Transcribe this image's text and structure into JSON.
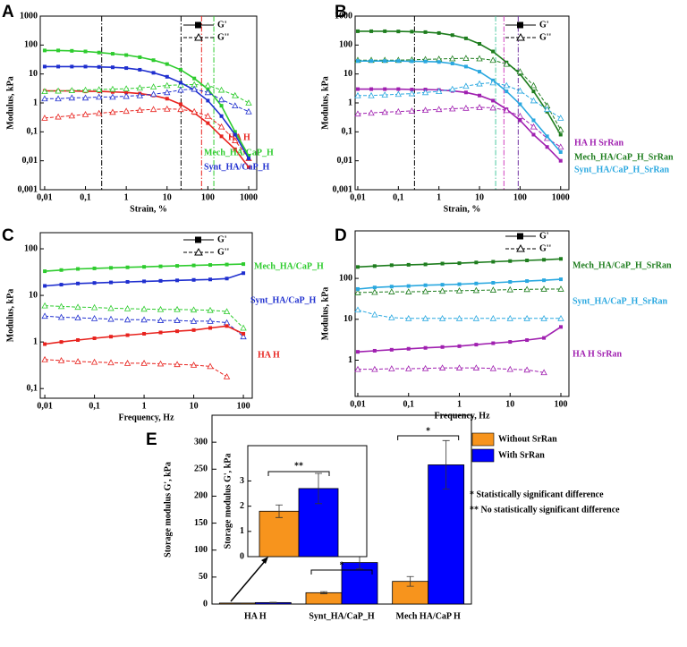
{
  "chart_data": [
    {
      "type": "line",
      "panel": "A",
      "xlabel": "Strain, %",
      "ylabel": "Modulus, kPa",
      "log_x": true,
      "log_y": true,
      "xlim": [
        0.0078,
        1575
      ],
      "ylim": [
        0.001,
        1000
      ],
      "xticks": [
        {
          "value": 0.01,
          "label": "0,01"
        },
        {
          "value": 0.1,
          "label": "0,1"
        },
        1,
        10,
        100,
        1000
      ],
      "yticks": [
        {
          "value": 0.001,
          "label": "0,001"
        },
        {
          "value": 0.01,
          "label": "0,01"
        },
        {
          "value": 0.1,
          "label": "0,1"
        },
        1,
        10,
        100,
        1000
      ],
      "legend": [
        "G'",
        "G''"
      ],
      "x": [
        0.01,
        0.0215,
        0.0464,
        0.1,
        0.215,
        0.464,
        1,
        2.15,
        4.64,
        10,
        21.5,
        46.4,
        100,
        215,
        464,
        1000
      ],
      "series": [
        {
          "name": "HA H",
          "color": "#e8231e",
          "values": [
            2.6,
            2.6,
            2.6,
            2.5,
            2.5,
            2.4,
            2.3,
            2.1,
            1.8,
            1.4,
            0.9,
            0.45,
            0.2,
            0.07,
            0.025,
            0.006
          ],
          "loss_values": [
            0.3,
            0.33,
            0.36,
            0.4,
            0.44,
            0.48,
            0.52,
            0.56,
            0.6,
            0.62,
            0.6,
            0.5,
            0.35,
            0.15,
            0.05,
            0.012
          ]
        },
        {
          "name": "Mech_HA/CaP_H",
          "color": "#2ecc2e",
          "values": [
            65,
            65,
            63,
            60,
            55,
            50,
            45,
            38,
            30,
            22,
            14,
            7,
            3,
            0.8,
            0.1,
            0.015
          ],
          "loss_values": [
            2.5,
            2.6,
            2.7,
            2.8,
            2.9,
            3,
            3.1,
            3.3,
            3.6,
            4,
            4.2,
            4.3,
            4,
            2.8,
            1.8,
            1
          ]
        },
        {
          "name": "Synt_HA/CaP_H",
          "color": "#1f2fcf",
          "values": [
            18,
            18,
            18,
            18,
            17.5,
            17,
            16,
            14,
            11,
            8,
            5,
            2.8,
            1.2,
            0.35,
            0.08,
            0.012
          ],
          "loss_values": [
            1.4,
            1.4,
            1.5,
            1.5,
            1.6,
            1.6,
            1.7,
            1.8,
            2,
            2.3,
            2.8,
            3,
            2.3,
            1.3,
            0.8,
            0.5
          ]
        }
      ],
      "vlines": [
        {
          "x": 0.25,
          "color": "#000000"
        },
        {
          "x": 22,
          "color": "#000000"
        },
        {
          "x": 70,
          "color": "#e8231e"
        },
        {
          "x": 140,
          "color": "#2ecc2e"
        }
      ]
    },
    {
      "type": "line",
      "panel": "B",
      "xlabel": "Strain, %",
      "ylabel": "Modulus, kPa",
      "log_x": true,
      "log_y": true,
      "xlim": [
        0.0086,
        1600
      ],
      "ylim": [
        0.001,
        1000
      ],
      "xticks": [
        {
          "value": 0.01,
          "label": "0,01"
        },
        {
          "value": 0.1,
          "label": "0,1"
        },
        1,
        10,
        100,
        1000
      ],
      "yticks": [
        {
          "value": 0.001,
          "label": "0,001"
        },
        {
          "value": 0.01,
          "label": "0,01"
        },
        {
          "value": 0.1,
          "label": "0,1"
        },
        1,
        10,
        100,
        1000
      ],
      "legend": [
        "G'",
        "G''"
      ],
      "x": [
        0.01,
        0.0215,
        0.0464,
        0.1,
        0.215,
        0.464,
        1,
        2.15,
        4.64,
        10,
        21.5,
        46.4,
        100,
        215,
        464,
        1000
      ],
      "series": [
        {
          "name": "HA H  SrRan",
          "color": "#a020b0",
          "values": [
            3,
            3,
            3,
            3,
            2.9,
            2.9,
            2.8,
            2.6,
            2.3,
            1.8,
            1.2,
            0.6,
            0.25,
            0.08,
            0.03,
            0.01
          ],
          "loss_values": [
            0.42,
            0.45,
            0.48,
            0.5,
            0.53,
            0.56,
            0.6,
            0.63,
            0.66,
            0.7,
            0.68,
            0.55,
            0.35,
            0.15,
            0.06,
            0.03
          ]
        },
        {
          "name": "Mech_HA/CaP_H_SrRan",
          "color": "#1e7d1e",
          "values": [
            300,
            300,
            300,
            295,
            290,
            280,
            260,
            220,
            170,
            110,
            60,
            25,
            10,
            2.5,
            0.5,
            0.08
          ],
          "loss_values": [
            30,
            30,
            30,
            30,
            31,
            32,
            33,
            34,
            35,
            34,
            30,
            22,
            12,
            4,
            0.8,
            0.12
          ]
        },
        {
          "name": "Synt_HA/CaP_H_SrRan",
          "color": "#2aa8e0",
          "values": [
            28,
            28,
            28,
            28,
            27.5,
            27,
            26,
            23,
            18,
            12,
            6,
            2.5,
            0.9,
            0.25,
            0.07,
            0.02
          ],
          "loss_values": [
            1.8,
            1.8,
            1.9,
            2,
            2.1,
            2.3,
            2.5,
            3,
            3.8,
            4.6,
            5,
            4,
            2.6,
            1.2,
            0.6,
            0.3
          ]
        }
      ],
      "vlines": [
        {
          "x": 0.25,
          "color": "#000000"
        },
        {
          "x": 25,
          "color": "#4cc9a0"
        },
        {
          "x": 40,
          "color": "#d040c0"
        },
        {
          "x": 90,
          "color": "#7030a0"
        }
      ]
    },
    {
      "type": "line",
      "panel": "C",
      "xlabel": "Frequency, Hz",
      "ylabel": "Modulus, kPa",
      "log_x": true,
      "log_y": true,
      "xlim": [
        0.0081,
        151
      ],
      "ylim": [
        0.062,
        222
      ],
      "xticks": [
        {
          "value": 0.01,
          "label": "0,01"
        },
        {
          "value": 0.1,
          "label": "0,1"
        },
        1,
        10,
        100
      ],
      "yticks": [
        {
          "value": 0.1,
          "label": "0,1"
        },
        1,
        10,
        100
      ],
      "legend": [
        "G'",
        "G''"
      ],
      "x": [
        0.01,
        0.0215,
        0.0464,
        0.1,
        0.215,
        0.464,
        1,
        2.15,
        4.64,
        10,
        21.5,
        46.4,
        100
      ],
      "series": [
        {
          "name": "Mech_HA/CaP_H",
          "color": "#2ecc2e",
          "values": [
            33,
            35,
            37,
            38,
            39,
            40,
            41,
            42,
            43,
            44,
            45,
            46,
            47
          ],
          "loss_values": [
            6,
            5.8,
            5.6,
            5.5,
            5.3,
            5.2,
            5.1,
            5,
            5,
            4.9,
            4.8,
            4.5,
            2
          ]
        },
        {
          "name": "Synt_HA/CaP_H",
          "color": "#1f2fcf",
          "values": [
            16,
            17,
            18,
            18.5,
            19,
            19.5,
            20,
            20.5,
            21,
            21.5,
            22,
            23,
            30
          ],
          "loss_values": [
            3.6,
            3.4,
            3.3,
            3.2,
            3.1,
            3,
            3,
            2.9,
            2.9,
            2.8,
            2.8,
            2.6,
            1.3
          ]
        },
        {
          "name": "HA H",
          "color": "#e8231e",
          "values": [
            0.9,
            1,
            1.1,
            1.2,
            1.3,
            1.4,
            1.5,
            1.6,
            1.7,
            1.8,
            2,
            2.2,
            1.5
          ],
          "loss_values": [
            0.42,
            0.4,
            0.38,
            0.37,
            0.36,
            0.35,
            0.35,
            0.34,
            0.33,
            0.32,
            0.3,
            0.18,
            null
          ]
        }
      ],
      "vlines": []
    },
    {
      "type": "line",
      "panel": "D",
      "xlabel": "Frequency, Hz",
      "ylabel": "Modulus, kPa",
      "log_x": true,
      "log_y": true,
      "xlim": [
        0.00886,
        144
      ],
      "ylim": [
        0.13,
        1450
      ],
      "xticks": [
        {
          "value": 0.01,
          "label": "0,01"
        },
        {
          "value": 0.1,
          "label": "0,1"
        },
        1,
        10,
        100
      ],
      "yticks": [
        1,
        10,
        100
      ],
      "legend": [
        "G'",
        "G''"
      ],
      "x": [
        0.01,
        0.0215,
        0.0464,
        0.1,
        0.215,
        0.464,
        1,
        2.15,
        4.64,
        10,
        21.5,
        46.4,
        100
      ],
      "series": [
        {
          "name": "Mech_HA/CaP_H_SrRan",
          "color": "#1e7d1e",
          "values": [
            190,
            200,
            210,
            215,
            220,
            230,
            235,
            245,
            255,
            265,
            275,
            285,
            300
          ],
          "loss_values": [
            45,
            46,
            47,
            47,
            48,
            49,
            50,
            51,
            52,
            53,
            54,
            55,
            55
          ]
        },
        {
          "name": "Synt_HA/CaP_H_SrRan",
          "color": "#2aa8e0",
          "values": [
            55,
            60,
            63,
            65,
            68,
            70,
            72,
            75,
            78,
            82,
            86,
            90,
            95
          ],
          "loss_values": [
            17,
            13,
            11,
            10.5,
            10.5,
            10.5,
            10.5,
            10.5,
            10.5,
            10.5,
            10.5,
            10.5,
            10.5
          ]
        },
        {
          "name": "HA H  SrRan",
          "color": "#a020b0",
          "values": [
            1.6,
            1.7,
            1.8,
            1.9,
            2,
            2.1,
            2.2,
            2.4,
            2.6,
            2.8,
            3.1,
            3.5,
            6.5
          ],
          "loss_values": [
            0.6,
            0.6,
            0.62,
            0.62,
            0.63,
            0.65,
            0.65,
            0.65,
            0.63,
            0.6,
            0.58,
            0.5,
            null
          ]
        }
      ],
      "vlines": []
    },
    {
      "type": "bar",
      "panel": "E",
      "ylabel": "Storage modulus G', kPa",
      "categories": [
        "HA H",
        "Synt_HA/CaP_H",
        "Mech  HA/CaP  H"
      ],
      "ylim": [
        0,
        350
      ],
      "yticks": [
        0,
        50,
        100,
        150,
        200,
        250,
        300
      ],
      "series": [
        {
          "name": "Without SrRan",
          "color": "#f7941d",
          "values": [
            1.8,
            21,
            42
          ],
          "errors": [
            0.25,
            2,
            9
          ]
        },
        {
          "name": "With SrRan",
          "color": "#0000ff",
          "values": [
            2.7,
            77,
            258
          ],
          "errors": [
            0.6,
            12,
            45
          ]
        }
      ],
      "significance": [
        "*",
        "*"
      ],
      "notes": [
        "* Statistically significant difference",
        "** No statistically significant difference"
      ]
    },
    {
      "type": "inset",
      "ylabel": "Storage modulus G', kPa",
      "ylim": [
        0,
        4.4
      ],
      "yticks": [
        0,
        1,
        2,
        3
      ],
      "values": [
        1.8,
        2.7
      ],
      "errors": [
        0.25,
        0.6
      ],
      "colors": [
        "#f7941d",
        "#0000ff"
      ],
      "significance": "**"
    }
  ]
}
